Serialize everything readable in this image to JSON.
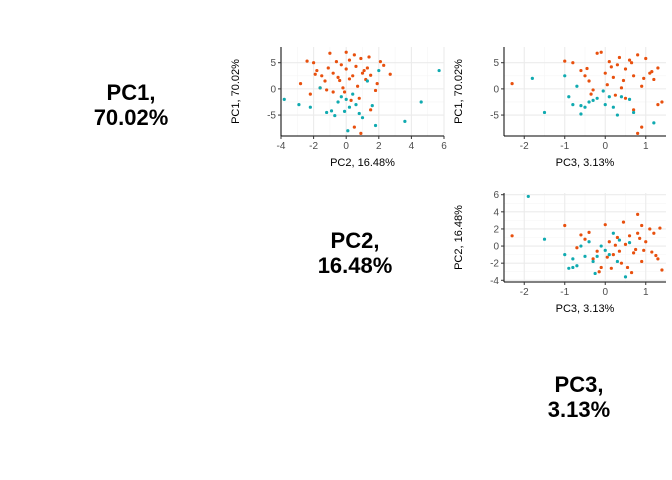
{
  "diagonal_labels": [
    {
      "line1": "PC1,",
      "line2": "70.02%"
    },
    {
      "line1": "PC2,",
      "line2": "16.48%"
    },
    {
      "line1": "PC3,",
      "line2": "3.13%"
    }
  ],
  "colors": {
    "group_a": "#e8500e",
    "group_b": "#10aab0",
    "grid_major": "#ebebeb",
    "grid_minor": "#f5f5f5"
  },
  "chart_data": [
    {
      "type": "scatter",
      "title": "",
      "xlabel": "PC2, 16.48%",
      "ylabel": "PC1, 70.02%",
      "xlim": [
        -4,
        6
      ],
      "ylim": [
        -9,
        8
      ],
      "xticks": [
        -4,
        -2,
        0,
        2,
        4,
        6
      ],
      "yticks": [
        -5,
        0,
        5
      ],
      "grid": true,
      "series": [
        {
          "color": "#e8500e",
          "points": [
            [
              -2.8,
              1.0
            ],
            [
              -2.4,
              5.3
            ],
            [
              -2.0,
              5.0
            ],
            [
              -1.8,
              3.5
            ],
            [
              -1.5,
              2.5
            ],
            [
              -1.3,
              1.5
            ],
            [
              -1.2,
              -0.2
            ],
            [
              -1.0,
              6.8
            ],
            [
              -0.8,
              3.0
            ],
            [
              -0.6,
              5.2
            ],
            [
              -0.5,
              2.2
            ],
            [
              -0.3,
              4.6
            ],
            [
              -0.2,
              0.2
            ],
            [
              0.0,
              3.8
            ],
            [
              0.2,
              5.5
            ],
            [
              0.4,
              2.5
            ],
            [
              0.5,
              6.5
            ],
            [
              0.7,
              0.5
            ],
            [
              0.9,
              5.8
            ],
            [
              1.0,
              3.0
            ],
            [
              1.2,
              1.8
            ],
            [
              1.3,
              4.0
            ],
            [
              1.5,
              2.6
            ],
            [
              1.8,
              -0.3
            ],
            [
              1.9,
              1.0
            ],
            [
              2.3,
              4.5
            ],
            [
              2.7,
              2.8
            ],
            [
              -1.6,
              0.2
            ],
            [
              0.3,
              -2.2
            ],
            [
              0.0,
              7.0
            ],
            [
              -2.2,
              -1.0
            ],
            [
              -0.8,
              -0.6
            ],
            [
              0.8,
              -1.8
            ],
            [
              1.5,
              -4.0
            ],
            [
              0.9,
              -8.5
            ],
            [
              0.5,
              -7.3
            ],
            [
              -0.4,
              1.6
            ],
            [
              1.4,
              6.1
            ],
            [
              2.1,
              5.2
            ],
            [
              -1.1,
              4.0
            ],
            [
              -0.1,
              -0.6
            ],
            [
              1.1,
              3.5
            ],
            [
              0.2,
              1.9
            ],
            [
              -1.9,
              2.8
            ],
            [
              0.6,
              4.3
            ]
          ]
        },
        {
          "color": "#10aab0",
          "points": [
            [
              -3.8,
              -2.0
            ],
            [
              -2.9,
              -3.0
            ],
            [
              -2.2,
              -3.5
            ],
            [
              -1.6,
              0.2
            ],
            [
              -1.2,
              -4.5
            ],
            [
              -0.7,
              -5.1
            ],
            [
              -0.5,
              -2.5
            ],
            [
              -0.3,
              -1.5
            ],
            [
              0.0,
              -2.0
            ],
            [
              0.2,
              -3.5
            ],
            [
              0.4,
              -1.0
            ],
            [
              0.6,
              -3.0
            ],
            [
              1.0,
              -5.5
            ],
            [
              1.3,
              1.5
            ],
            [
              1.8,
              -7.0
            ],
            [
              2.0,
              3.5
            ],
            [
              3.6,
              -6.2
            ],
            [
              4.6,
              -2.5
            ],
            [
              5.7,
              3.5
            ],
            [
              0.1,
              -8.0
            ],
            [
              -0.9,
              -4.2
            ],
            [
              -0.1,
              -4.3
            ],
            [
              0.8,
              -4.7
            ],
            [
              1.6,
              -3.2
            ]
          ]
        }
      ]
    },
    {
      "type": "scatter",
      "title": "",
      "xlabel": "PC3, 3.13%",
      "ylabel": "PC1, 70.02%",
      "xlim": [
        -2.5,
        1.5
      ],
      "ylim": [
        -9,
        8
      ],
      "xticks": [
        -2,
        -1,
        0,
        1
      ],
      "yticks": [
        -5,
        0,
        5
      ],
      "grid": true,
      "series": [
        {
          "color": "#e8500e",
          "points": [
            [
              -2.3,
              1.0
            ],
            [
              -1.0,
              5.3
            ],
            [
              -0.8,
              5.0
            ],
            [
              -0.6,
              3.5
            ],
            [
              -0.5,
              2.5
            ],
            [
              -0.4,
              1.5
            ],
            [
              -0.3,
              -0.2
            ],
            [
              -0.2,
              6.8
            ],
            [
              0.0,
              3.0
            ],
            [
              0.1,
              5.2
            ],
            [
              0.2,
              2.2
            ],
            [
              0.3,
              4.6
            ],
            [
              0.4,
              0.2
            ],
            [
              0.5,
              3.8
            ],
            [
              0.6,
              5.5
            ],
            [
              0.7,
              2.5
            ],
            [
              0.8,
              6.5
            ],
            [
              0.9,
              0.5
            ],
            [
              1.0,
              5.8
            ],
            [
              1.1,
              3.0
            ],
            [
              1.2,
              1.8
            ],
            [
              1.3,
              4.0
            ],
            [
              0.5,
              -1.8
            ],
            [
              0.7,
              -4.0
            ],
            [
              0.8,
              -8.5
            ],
            [
              0.9,
              -7.3
            ],
            [
              1.3,
              -3.0
            ],
            [
              1.4,
              -2.5
            ],
            [
              -0.1,
              7.0
            ],
            [
              0.25,
              -1.2
            ],
            [
              0.35,
              6.0
            ],
            [
              -0.35,
              -1.0
            ],
            [
              0.15,
              4.2
            ],
            [
              0.45,
              1.6
            ],
            [
              0.65,
              5.0
            ],
            [
              0.95,
              2.0
            ],
            [
              1.15,
              3.3
            ],
            [
              0.05,
              0.8
            ],
            [
              -0.45,
              3.9
            ]
          ]
        },
        {
          "color": "#10aab0",
          "points": [
            [
              -1.8,
              2.0
            ],
            [
              -1.5,
              -4.5
            ],
            [
              -1.0,
              2.5
            ],
            [
              -0.9,
              -1.5
            ],
            [
              -0.8,
              -3.0
            ],
            [
              -0.7,
              0.5
            ],
            [
              -0.6,
              -4.8
            ],
            [
              -0.5,
              -3.5
            ],
            [
              -0.4,
              -2.5
            ],
            [
              -0.3,
              -2.2
            ],
            [
              -0.2,
              -1.8
            ],
            [
              0.0,
              -3.0
            ],
            [
              0.1,
              -1.5
            ],
            [
              0.3,
              -5.0
            ],
            [
              0.4,
              -1.5
            ],
            [
              0.2,
              -3.5
            ],
            [
              0.6,
              -2.0
            ],
            [
              0.7,
              -4.5
            ],
            [
              1.2,
              -6.5
            ],
            [
              -0.6,
              -3.2
            ],
            [
              -0.05,
              -0.4
            ]
          ]
        }
      ]
    },
    {
      "type": "scatter",
      "title": "",
      "xlabel": "PC3, 3.13%",
      "ylabel": "PC2, 16.48%",
      "xlim": [
        -2.5,
        1.5
      ],
      "ylim": [
        -4.2,
        6.2
      ],
      "xticks": [
        -2,
        -1,
        0,
        1
      ],
      "yticks": [
        -4,
        -2,
        0,
        2,
        4,
        6
      ],
      "grid": true,
      "series": [
        {
          "color": "#e8500e",
          "points": [
            [
              -2.3,
              1.2
            ],
            [
              -1.0,
              2.4
            ],
            [
              -0.7,
              -0.2
            ],
            [
              -0.5,
              0.8
            ],
            [
              -0.4,
              1.6
            ],
            [
              -0.3,
              -1.5
            ],
            [
              -0.2,
              -0.6
            ],
            [
              -0.1,
              -2.5
            ],
            [
              0.0,
              2.5
            ],
            [
              0.1,
              0.5
            ],
            [
              0.2,
              -1.0
            ],
            [
              0.3,
              1.0
            ],
            [
              0.4,
              -2.0
            ],
            [
              0.5,
              0.2
            ],
            [
              0.6,
              1.2
            ],
            [
              0.7,
              -0.8
            ],
            [
              0.8,
              1.5
            ],
            [
              0.9,
              -1.8
            ],
            [
              1.0,
              0.5
            ],
            [
              1.1,
              2.0
            ],
            [
              1.2,
              1.5
            ],
            [
              1.3,
              -1.5
            ],
            [
              1.4,
              -2.8
            ],
            [
              0.55,
              -2.5
            ],
            [
              0.75,
              -0.4
            ],
            [
              0.85,
              0.9
            ],
            [
              0.95,
              -0.5
            ],
            [
              1.15,
              -0.7
            ],
            [
              0.35,
              -0.6
            ],
            [
              -0.6,
              1.3
            ],
            [
              0.05,
              -1.3
            ],
            [
              0.45,
              2.8
            ],
            [
              0.8,
              3.7
            ],
            [
              0.15,
              -2.6
            ],
            [
              -0.15,
              -3.0
            ],
            [
              1.35,
              2.1
            ],
            [
              1.25,
              -1.1
            ],
            [
              0.65,
              -3.1
            ],
            [
              0.25,
              0.1
            ],
            [
              0.9,
              2.4
            ]
          ]
        },
        {
          "color": "#10aab0",
          "points": [
            [
              -1.9,
              5.8
            ],
            [
              -1.5,
              0.8
            ],
            [
              -1.0,
              -1.0
            ],
            [
              -0.9,
              -2.6
            ],
            [
              -0.8,
              -1.5
            ],
            [
              -0.7,
              -2.3
            ],
            [
              -0.6,
              0.0
            ],
            [
              -0.5,
              -1.2
            ],
            [
              -0.4,
              0.5
            ],
            [
              -0.3,
              -1.8
            ],
            [
              -0.2,
              -1.2
            ],
            [
              -0.1,
              0.0
            ],
            [
              0.0,
              -0.5
            ],
            [
              0.2,
              1.5
            ],
            [
              0.3,
              -1.8
            ],
            [
              0.6,
              0.4
            ],
            [
              -0.8,
              -2.5
            ],
            [
              0.5,
              -3.6
            ],
            [
              -0.25,
              -3.2
            ],
            [
              0.1,
              -1.0
            ],
            [
              0.35,
              0.7
            ]
          ]
        }
      ]
    }
  ]
}
